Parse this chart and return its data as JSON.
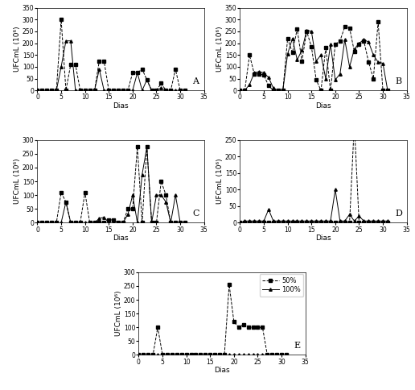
{
  "days": [
    0,
    1,
    2,
    3,
    4,
    5,
    6,
    7,
    8,
    9,
    10,
    11,
    12,
    13,
    14,
    15,
    16,
    17,
    18,
    19,
    20,
    21,
    22,
    23,
    24,
    25,
    26,
    27,
    28,
    29,
    30,
    31
  ],
  "A_50": [
    0,
    0,
    0,
    0,
    0,
    300,
    0,
    110,
    110,
    0,
    0,
    0,
    0,
    125,
    125,
    0,
    0,
    0,
    0,
    0,
    75,
    75,
    90,
    45,
    0,
    0,
    30,
    0,
    0,
    90,
    0,
    0
  ],
  "A_100": [
    0,
    0,
    0,
    0,
    0,
    100,
    210,
    210,
    0,
    0,
    0,
    0,
    0,
    90,
    0,
    0,
    0,
    0,
    0,
    0,
    0,
    75,
    0,
    45,
    0,
    0,
    10,
    0,
    0,
    0,
    0,
    0
  ],
  "B_50": [
    0,
    0,
    150,
    70,
    70,
    65,
    20,
    0,
    0,
    0,
    220,
    160,
    260,
    125,
    250,
    185,
    45,
    0,
    180,
    0,
    195,
    210,
    270,
    265,
    165,
    195,
    210,
    120,
    50,
    290,
    0,
    0
  ],
  "B_100": [
    0,
    0,
    25,
    75,
    80,
    75,
    55,
    10,
    0,
    0,
    155,
    220,
    130,
    170,
    255,
    250,
    125,
    150,
    50,
    195,
    45,
    70,
    215,
    100,
    175,
    200,
    215,
    205,
    150,
    120,
    115,
    0
  ],
  "C_50": [
    0,
    0,
    0,
    0,
    0,
    110,
    75,
    0,
    0,
    0,
    110,
    0,
    0,
    0,
    0,
    10,
    10,
    0,
    0,
    50,
    50,
    275,
    0,
    275,
    0,
    0,
    150,
    100,
    0,
    0,
    0,
    0
  ],
  "C_100": [
    0,
    0,
    0,
    0,
    0,
    0,
    75,
    0,
    0,
    0,
    0,
    0,
    0,
    15,
    20,
    0,
    0,
    0,
    0,
    30,
    100,
    0,
    175,
    275,
    0,
    100,
    100,
    75,
    0,
    100,
    0,
    0
  ],
  "D_50": [
    0,
    0,
    0,
    0,
    0,
    0,
    0,
    0,
    0,
    0,
    0,
    0,
    0,
    0,
    0,
    0,
    0,
    0,
    0,
    0,
    0,
    0,
    0,
    0,
    300,
    0,
    0,
    0,
    0,
    0,
    0,
    0
  ],
  "D_100": [
    0,
    5,
    5,
    5,
    5,
    5,
    40,
    5,
    5,
    5,
    5,
    5,
    5,
    5,
    5,
    5,
    5,
    5,
    5,
    5,
    100,
    5,
    5,
    25,
    5,
    20,
    5,
    5,
    5,
    5,
    5,
    5
  ],
  "E_50": [
    0,
    0,
    0,
    0,
    100,
    0,
    0,
    0,
    0,
    0,
    0,
    0,
    0,
    0,
    0,
    0,
    0,
    0,
    0,
    255,
    120,
    100,
    110,
    100,
    100,
    100,
    100,
    0,
    0,
    0,
    0,
    0
  ],
  "E_100": [
    0,
    0,
    0,
    0,
    0,
    0,
    0,
    0,
    0,
    0,
    0,
    0,
    0,
    0,
    0,
    0,
    0,
    0,
    0,
    0,
    0,
    0,
    0,
    0,
    0,
    0,
    0,
    0,
    0,
    0,
    0,
    0
  ],
  "ylim_A": [
    0,
    350
  ],
  "ylim_B": [
    0,
    350
  ],
  "ylim_C": [
    0,
    300
  ],
  "ylim_D": [
    0,
    250
  ],
  "ylim_E": [
    0,
    300
  ],
  "yticks_A": [
    0,
    50,
    100,
    150,
    200,
    250,
    300,
    350
  ],
  "yticks_B": [
    0,
    50,
    100,
    150,
    200,
    250,
    300,
    350
  ],
  "yticks_C": [
    0,
    50,
    100,
    150,
    200,
    250,
    300
  ],
  "yticks_D": [
    0,
    50,
    100,
    150,
    200,
    250
  ],
  "yticks_E": [
    0,
    50,
    100,
    150,
    200,
    250,
    300
  ],
  "xlabel": "Dias",
  "ylabel": "UFCmL (10⁶)",
  "line_50_color": "black",
  "line_100_color": "black",
  "line_50_style": "--",
  "line_100_style": "-",
  "marker_50": "s",
  "marker_100": "^",
  "legend_50": "---■- 50%",
  "legend_100": "--▲- 100%",
  "label_fontsize": 6.5,
  "tick_fontsize": 5.5,
  "legend_fontsize": 6,
  "marker_size": 2.5,
  "linewidth": 0.7
}
